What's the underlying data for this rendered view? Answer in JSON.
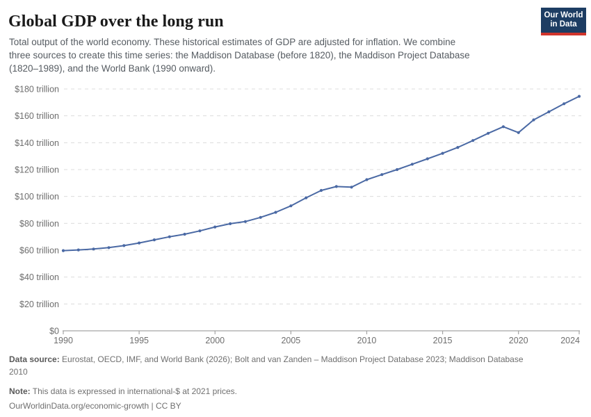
{
  "header": {
    "title": "Global GDP over the long run",
    "subtitle_lines": [
      "Total output of the world economy. These historical estimates of GDP are adjusted for inflation. We combine",
      "three sources to create this time series: the Maddison Database (before 1820), the Maddison Project Database",
      "(1820–1989), and the World Bank (1990 onward)."
    ],
    "logo": {
      "line1": "Our World",
      "line2": "in Data",
      "bg_color": "#1d3d63",
      "stripe_color": "#d0342c"
    }
  },
  "chart_data": {
    "type": "line",
    "title": "Global GDP over the long run",
    "x": [
      1990,
      1991,
      1992,
      1993,
      1994,
      1995,
      1996,
      1997,
      1998,
      1999,
      2000,
      2001,
      2002,
      2003,
      2004,
      2005,
      2006,
      2007,
      2008,
      2009,
      2010,
      2011,
      2012,
      2013,
      2014,
      2015,
      2016,
      2017,
      2018,
      2019,
      2020,
      2021,
      2022,
      2023,
      2024
    ],
    "series": [
      {
        "name": "World GDP, trillion international-$ at 2021 prices",
        "values": [
          59.7,
          60.2,
          60.9,
          61.9,
          63.4,
          65.4,
          67.7,
          70.0,
          71.9,
          74.4,
          77.3,
          79.7,
          81.3,
          84.4,
          88.2,
          93.0,
          99.0,
          104.5,
          107.4,
          106.9,
          112.5,
          116.3,
          120.0,
          124.0,
          128.0,
          132.1,
          136.5,
          141.6,
          147.0,
          151.9,
          147.5,
          157.0,
          163.0,
          169.0,
          174.5
        ]
      }
    ],
    "xlabel": "",
    "ylabel": "",
    "ylim": [
      0,
      180
    ],
    "ytick_values": [
      0,
      20,
      40,
      60,
      80,
      100,
      120,
      140,
      160,
      180
    ],
    "ytick_labels": [
      "$0",
      "$20 trillion",
      "$40 trillion",
      "$60 trillion",
      "$80 trillion",
      "$100 trillion",
      "$120 trillion",
      "$140 trillion",
      "$160 trillion",
      "$180 trillion"
    ],
    "xtick_values": [
      1990,
      1995,
      2000,
      2005,
      2010,
      2015,
      2020,
      2024
    ],
    "xtick_labels": [
      "1990",
      "1995",
      "2000",
      "2005",
      "2010",
      "2015",
      "2020",
      "2024"
    ],
    "grid": "horizontal dashed",
    "legend": "none",
    "line_color": "#4a69a4",
    "marker": "dot",
    "grid_color": "#dcdcdc",
    "axis_color": "#a3a3a3",
    "tick_label_color": "#6e6e6e"
  },
  "footer": {
    "source_label": "Data source:",
    "source_text_lines": [
      "Eurostat, OECD, IMF, and World Bank (2026); Bolt and van Zanden – Maddison Project Database 2023; Maddison Database",
      "2010"
    ],
    "note_label": "Note:",
    "note_text": "This data is expressed in international-$ at 2021 prices.",
    "link_text": "OurWorldinData.org/economic-growth | CC BY"
  }
}
